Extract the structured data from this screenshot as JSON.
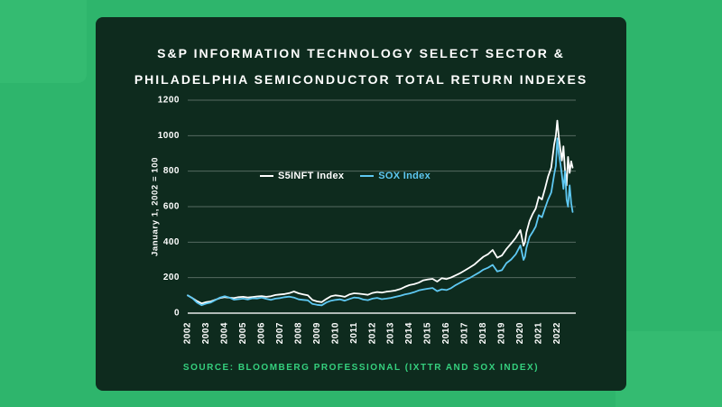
{
  "colors": {
    "background": "#2eb56c",
    "card": "#0e2b1e",
    "s5inft_line": "#ffffff",
    "sox_line": "#5ec8f2",
    "source_text": "#35d07e"
  },
  "card": {
    "title_line1": "S&P INFORMATION TECHNOLOGY SELECT SECTOR &",
    "title_line2": "PHILADELPHIA SEMICONDUCTOR TOTAL RETURN INDEXES",
    "source": "SOURCE: BLOOMBERG PROFESSIONAL (IXTTR AND SOX INDEX)"
  },
  "chart_data": {
    "type": "line",
    "title": "S&P INFORMATION TECHNOLOGY SELECT SECTOR & PHILADELPHIA SEMICONDUCTOR TOTAL RETURN INDEXES",
    "xlabel": "",
    "ylabel": "January 1, 2002 = 100",
    "ylim": [
      0,
      1200
    ],
    "xlim": [
      2002,
      2023
    ],
    "yticks": [
      0,
      200,
      400,
      600,
      800,
      1000,
      1200
    ],
    "xticks": [
      2002,
      2003,
      2004,
      2005,
      2006,
      2007,
      2008,
      2009,
      2010,
      2011,
      2012,
      2013,
      2014,
      2015,
      2016,
      2017,
      2018,
      2019,
      2020,
      2021,
      2022
    ],
    "grid": true,
    "legend_position": "inside-upper-left",
    "x": [
      2002.0,
      2002.25,
      2002.5,
      2002.75,
      2003.0,
      2003.25,
      2003.5,
      2003.75,
      2004.0,
      2004.25,
      2004.5,
      2004.75,
      2005.0,
      2005.25,
      2005.5,
      2005.75,
      2006.0,
      2006.25,
      2006.5,
      2006.75,
      2007.0,
      2007.25,
      2007.5,
      2007.75,
      2008.0,
      2008.25,
      2008.5,
      2008.75,
      2009.0,
      2009.25,
      2009.5,
      2009.75,
      2010.0,
      2010.25,
      2010.5,
      2010.75,
      2011.0,
      2011.25,
      2011.5,
      2011.75,
      2012.0,
      2012.25,
      2012.5,
      2012.75,
      2013.0,
      2013.25,
      2013.5,
      2013.75,
      2014.0,
      2014.25,
      2014.5,
      2014.75,
      2015.0,
      2015.25,
      2015.5,
      2015.75,
      2016.0,
      2016.25,
      2016.5,
      2016.75,
      2017.0,
      2017.25,
      2017.5,
      2017.75,
      2018.0,
      2018.25,
      2018.5,
      2018.75,
      2019.0,
      2019.25,
      2019.5,
      2019.75,
      2020.0,
      2020.17,
      2020.25,
      2020.33,
      2020.5,
      2020.67,
      2020.83,
      2021.0,
      2021.17,
      2021.33,
      2021.5,
      2021.67,
      2021.83,
      2021.92,
      2022.0,
      2022.08,
      2022.17,
      2022.25,
      2022.33,
      2022.42,
      2022.5,
      2022.58,
      2022.67,
      2022.75,
      2022.83
    ],
    "series": [
      {
        "name": "S5INFT Index",
        "color": "#ffffff",
        "values": [
          100,
          85,
          68,
          55,
          62,
          66,
          76,
          85,
          90,
          87,
          85,
          90,
          92,
          88,
          91,
          94,
          96,
          92,
          95,
          102,
          105,
          108,
          113,
          122,
          112,
          106,
          100,
          74,
          66,
          62,
          80,
          95,
          100,
          97,
          92,
          105,
          112,
          110,
          107,
          103,
          114,
          119,
          116,
          121,
          124,
          128,
          136,
          148,
          158,
          163,
          172,
          185,
          190,
          193,
          178,
          197,
          192,
          201,
          213,
          226,
          241,
          257,
          273,
          296,
          318,
          332,
          356,
          312,
          325,
          362,
          392,
          425,
          468,
          380,
          400,
          455,
          520,
          560,
          590,
          655,
          640,
          700,
          770,
          820,
          950,
          1000,
          1085,
          990,
          920,
          860,
          940,
          800,
          720,
          880,
          790,
          855,
          820
        ]
      },
      {
        "name": "SOX Index",
        "color": "#5ec8f2",
        "values": [
          100,
          85,
          60,
          45,
          54,
          60,
          74,
          88,
          95,
          88,
          76,
          79,
          82,
          77,
          84,
          83,
          88,
          81,
          75,
          82,
          85,
          90,
          93,
          88,
          78,
          75,
          72,
          52,
          47,
          44,
          60,
          70,
          75,
          78,
          70,
          80,
          88,
          86,
          77,
          73,
          82,
          86,
          79,
          82,
          86,
          92,
          98,
          106,
          111,
          118,
          128,
          133,
          138,
          142,
          124,
          134,
          130,
          141,
          158,
          172,
          186,
          198,
          213,
          228,
          245,
          256,
          272,
          235,
          242,
          282,
          302,
          332,
          382,
          300,
          318,
          368,
          430,
          458,
          488,
          552,
          540,
          590,
          640,
          680,
          780,
          830,
          985,
          900,
          840,
          780,
          700,
          800,
          640,
          600,
          720,
          620,
          570
        ]
      }
    ]
  }
}
